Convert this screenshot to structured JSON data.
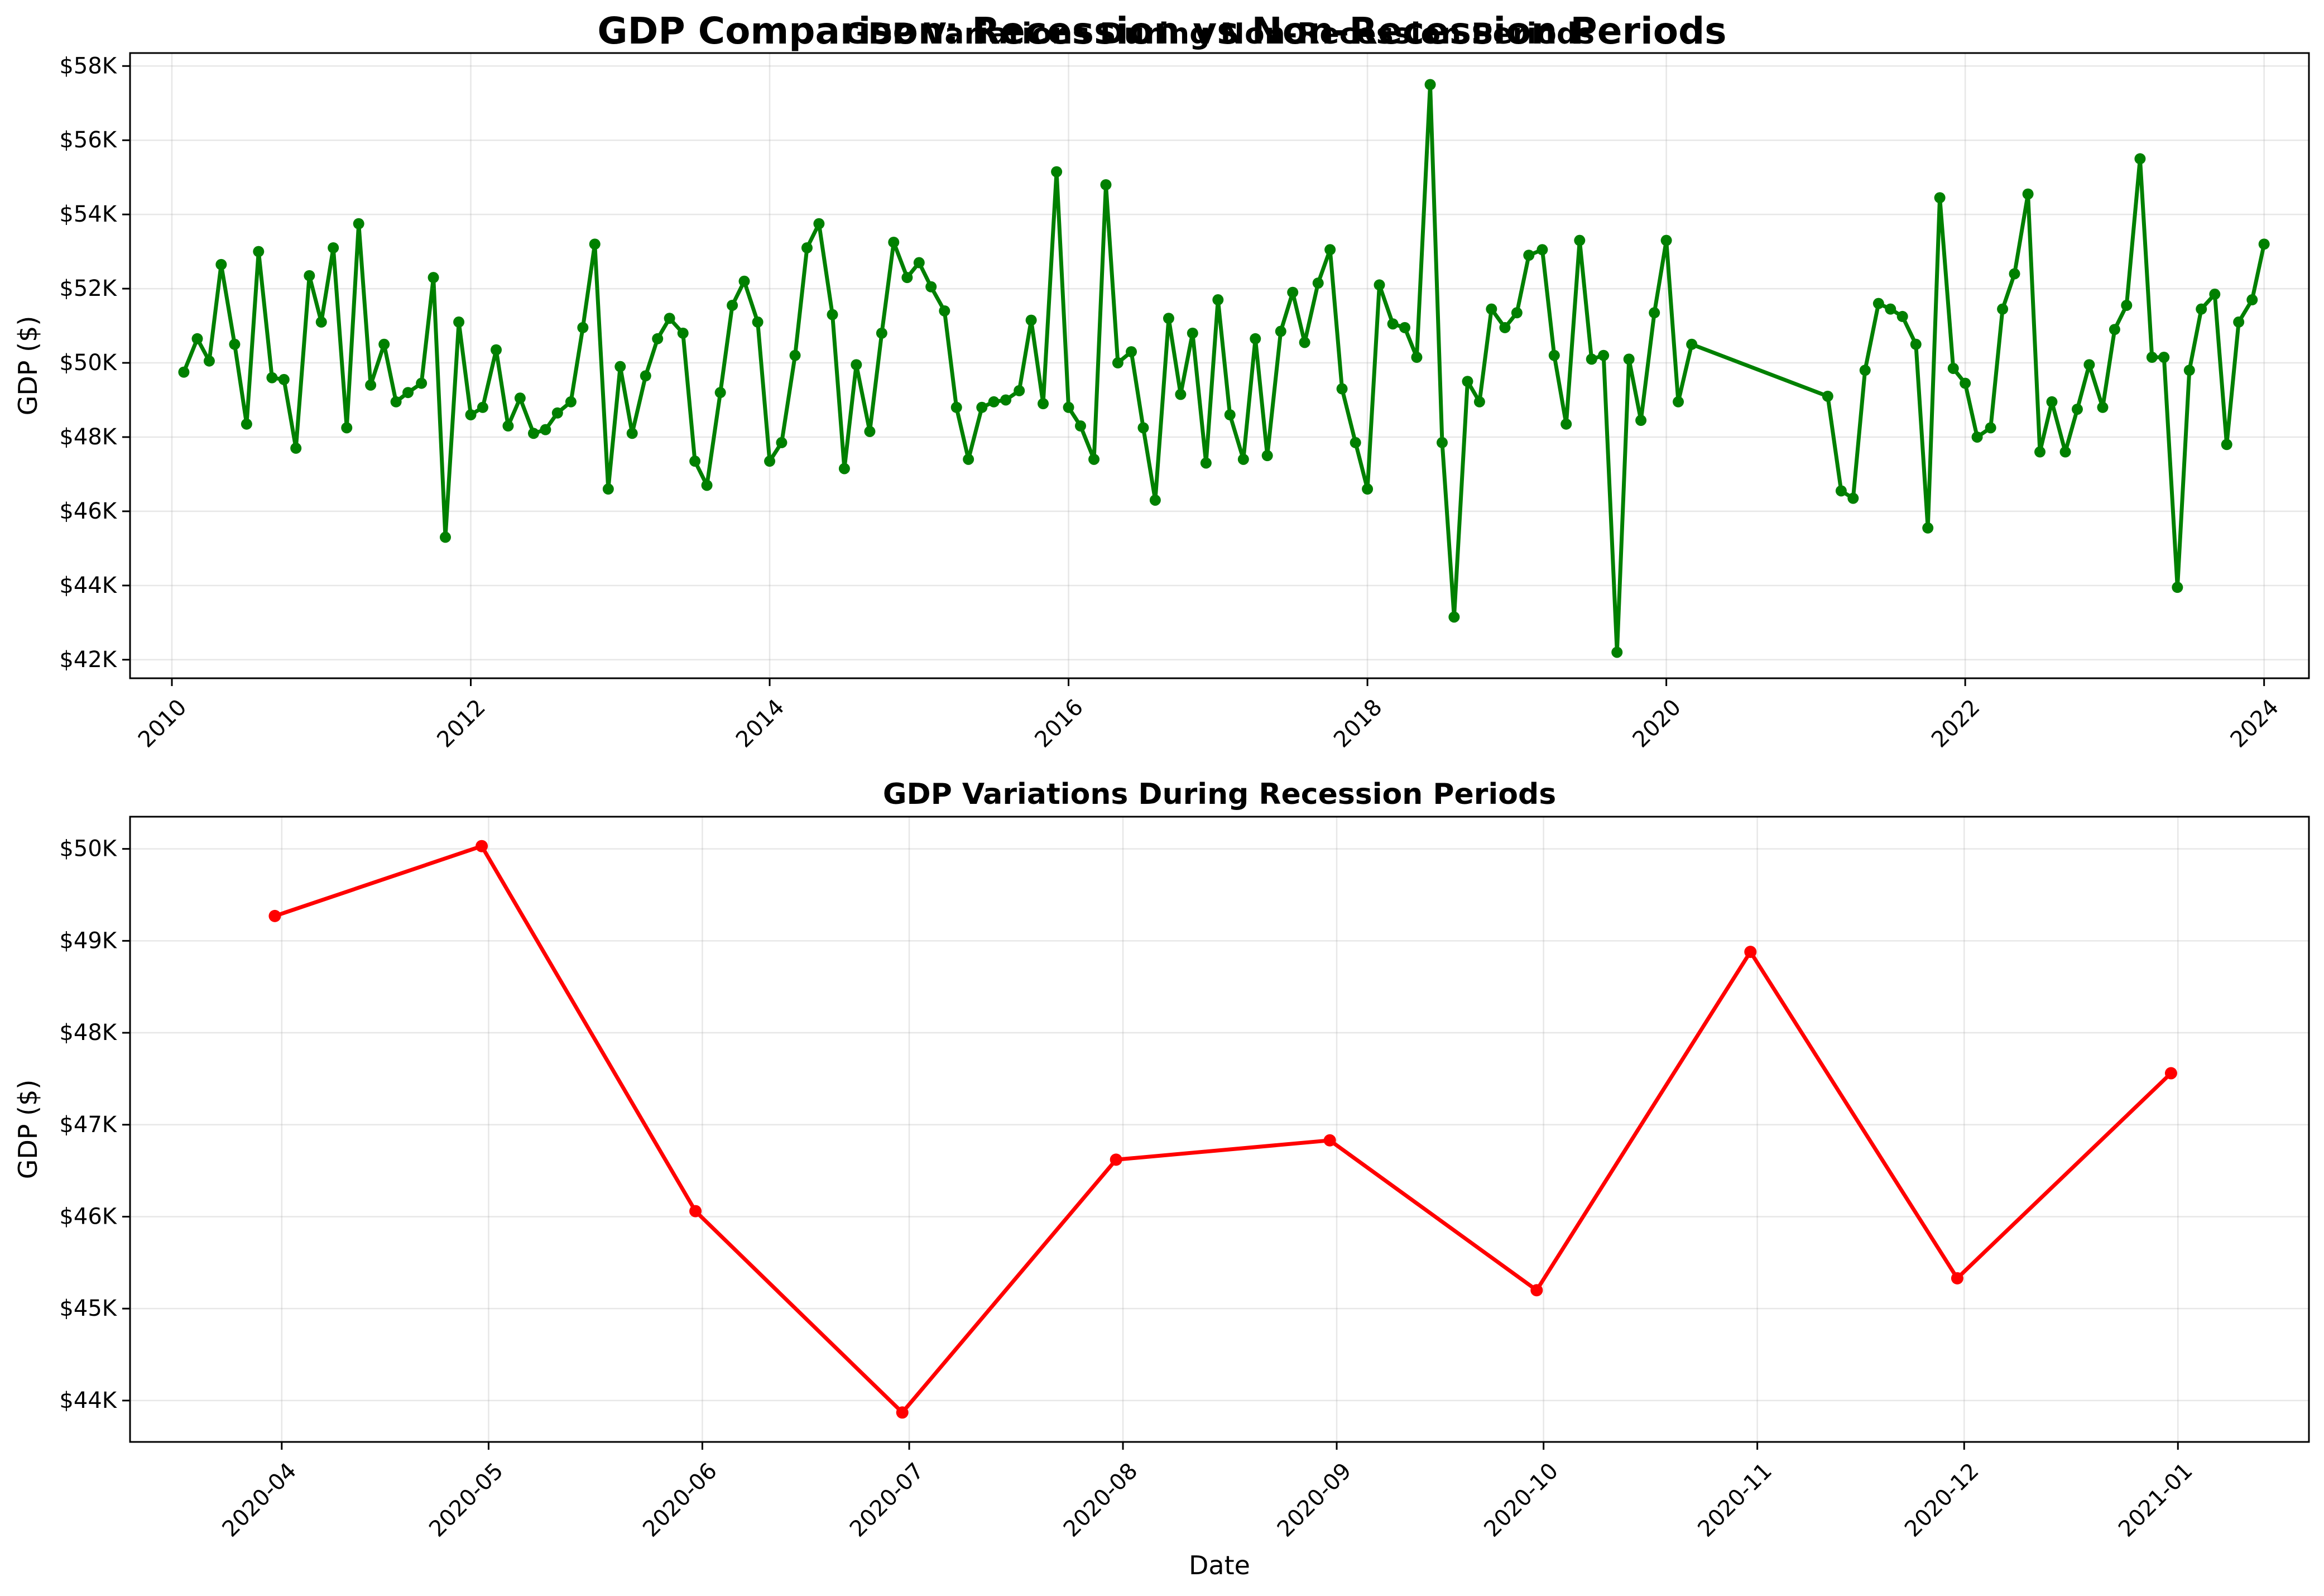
{
  "figure": {
    "suptitle": "GDP Comparison: Recession vs Non-Recession Periods"
  },
  "chart_data": [
    {
      "type": "line",
      "title": "GDP Variations During Non-Recession Periods",
      "xlabel": "",
      "ylabel": "GDP ($)",
      "color": "#008000",
      "grid": true,
      "x_axis": "year",
      "xlim": [
        2009.72,
        2024.3
      ],
      "ylim": [
        41500,
        58350
      ],
      "x_ticks": [
        2010,
        2012,
        2014,
        2016,
        2018,
        2020,
        2022,
        2024
      ],
      "x_tick_labels": [
        "2010",
        "2012",
        "2014",
        "2016",
        "2018",
        "2020",
        "2022",
        "2024"
      ],
      "y_ticks": [
        42000,
        44000,
        46000,
        48000,
        50000,
        52000,
        54000,
        56000,
        58000
      ],
      "y_tick_labels": [
        "$42K",
        "$44K",
        "$46K",
        "$48K",
        "$50K",
        "$52K",
        "$54K",
        "$56K",
        "$58K"
      ],
      "x": [
        2010.08,
        2010.17,
        2010.25,
        2010.33,
        2010.42,
        2010.5,
        2010.58,
        2010.67,
        2010.75,
        2010.83,
        2010.92,
        2011.0,
        2011.08,
        2011.17,
        2011.25,
        2011.33,
        2011.42,
        2011.5,
        2011.58,
        2011.67,
        2011.75,
        2011.83,
        2011.92,
        2012.0,
        2012.08,
        2012.17,
        2012.25,
        2012.33,
        2012.42,
        2012.5,
        2012.58,
        2012.67,
        2012.75,
        2012.83,
        2012.92,
        2013.0,
        2013.08,
        2013.17,
        2013.25,
        2013.33,
        2013.42,
        2013.5,
        2013.58,
        2013.67,
        2013.75,
        2013.83,
        2013.92,
        2014.0,
        2014.08,
        2014.17,
        2014.25,
        2014.33,
        2014.42,
        2014.5,
        2014.58,
        2014.67,
        2014.75,
        2014.83,
        2014.92,
        2015.0,
        2015.08,
        2015.17,
        2015.25,
        2015.33,
        2015.42,
        2015.5,
        2015.58,
        2015.67,
        2015.75,
        2015.83,
        2015.92,
        2016.0,
        2016.08,
        2016.17,
        2016.25,
        2016.33,
        2016.42,
        2016.5,
        2016.58,
        2016.67,
        2016.75,
        2016.83,
        2016.92,
        2017.0,
        2017.08,
        2017.17,
        2017.25,
        2017.33,
        2017.42,
        2017.5,
        2017.58,
        2017.67,
        2017.75,
        2017.83,
        2017.92,
        2018.0,
        2018.08,
        2018.17,
        2018.25,
        2018.33,
        2018.42,
        2018.5,
        2018.58,
        2018.67,
        2018.75,
        2018.83,
        2018.92,
        2019.0,
        2019.08,
        2019.17,
        2019.25,
        2019.33,
        2019.42,
        2019.5,
        2019.58,
        2019.67,
        2019.75,
        2019.83,
        2019.92,
        2020.0,
        2020.08,
        2020.17,
        2021.08,
        2021.17,
        2021.25,
        2021.33,
        2021.42,
        2021.5,
        2021.58,
        2021.67,
        2021.75,
        2021.83,
        2021.92,
        2022.0,
        2022.08,
        2022.17,
        2022.25,
        2022.33,
        2022.42,
        2022.5,
        2022.58,
        2022.67,
        2022.75,
        2022.83,
        2022.92,
        2023.0,
        2023.08,
        2023.17,
        2023.25,
        2023.33,
        2023.42,
        2023.5,
        2023.58,
        2023.67,
        2023.75,
        2023.83,
        2023.92,
        2024.0
      ],
      "values": [
        49750,
        50650,
        50050,
        52650,
        50500,
        48350,
        53000,
        49600,
        49550,
        47700,
        52350,
        51100,
        53100,
        48250,
        53750,
        49400,
        50500,
        48950,
        49200,
        49450,
        52300,
        45300,
        51100,
        48600,
        48800,
        50350,
        48300,
        49050,
        48100,
        48200,
        48650,
        48950,
        50950,
        53200,
        46600,
        49900,
        48100,
        49650,
        50650,
        51200,
        50800,
        47350,
        46700,
        49200,
        51550,
        52200,
        51100,
        47350,
        47850,
        50200,
        53100,
        53750,
        51300,
        47150,
        49950,
        48150,
        50800,
        53250,
        52300,
        52700,
        52050,
        51400,
        48800,
        47400,
        48800,
        48950,
        49000,
        49250,
        51150,
        48900,
        55150,
        48800,
        48300,
        47400,
        54800,
        50000,
        50300,
        48250,
        46300,
        51200,
        49150,
        50800,
        47300,
        51700,
        48600,
        47400,
        50650,
        47500,
        50850,
        51900,
        50550,
        52150,
        53050,
        49300,
        47850,
        46600,
        52100,
        51050,
        50950,
        50150,
        57500,
        47850,
        43150,
        49500,
        48950,
        51450,
        50950,
        51350,
        52900,
        53050,
        50200,
        48350,
        53300,
        50100,
        50200,
        42200,
        50100,
        48450,
        51350,
        53300,
        48950,
        50500,
        49100,
        46550,
        46350,
        49800,
        51600,
        51450,
        51250,
        50500,
        45550,
        54450,
        49850,
        49450,
        48000,
        48250,
        51450,
        52400,
        54550,
        47600,
        48950,
        47600,
        48750,
        49950,
        48800,
        50900,
        51550,
        55500,
        50150,
        50150,
        43950,
        49800,
        51450,
        51850,
        47800,
        51100,
        51700,
        53200
      ]
    },
    {
      "type": "line",
      "title": "GDP Variations During Recession Periods",
      "xlabel": "Date",
      "ylabel": "GDP ($)",
      "color": "#ff0000",
      "grid": true,
      "x_axis": "date",
      "xlim": [
        "2020-03-10",
        "2021-01-20"
      ],
      "ylim": [
        43550,
        50350
      ],
      "x_ticks": [
        "2020-04-01",
        "2020-05-01",
        "2020-06-01",
        "2020-07-01",
        "2020-08-01",
        "2020-09-01",
        "2020-10-01",
        "2020-11-01",
        "2020-12-01",
        "2021-01-01"
      ],
      "x_tick_labels": [
        "2020-04",
        "2020-05",
        "2020-06",
        "2020-07",
        "2020-08",
        "2020-09",
        "2020-10",
        "2020-11",
        "2020-12",
        "2021-01"
      ],
      "y_ticks": [
        44000,
        45000,
        46000,
        47000,
        48000,
        49000,
        50000
      ],
      "y_tick_labels": [
        "$44K",
        "$45K",
        "$46K",
        "$47K",
        "$48K",
        "$49K",
        "$50K"
      ],
      "x": [
        "2020-03-31",
        "2020-04-30",
        "2020-05-31",
        "2020-06-30",
        "2020-07-31",
        "2020-08-31",
        "2020-09-30",
        "2020-10-31",
        "2020-11-30",
        "2020-12-31"
      ],
      "values": [
        49270,
        50030,
        46060,
        43870,
        46620,
        46830,
        45200,
        48880,
        45330,
        47560
      ]
    }
  ]
}
